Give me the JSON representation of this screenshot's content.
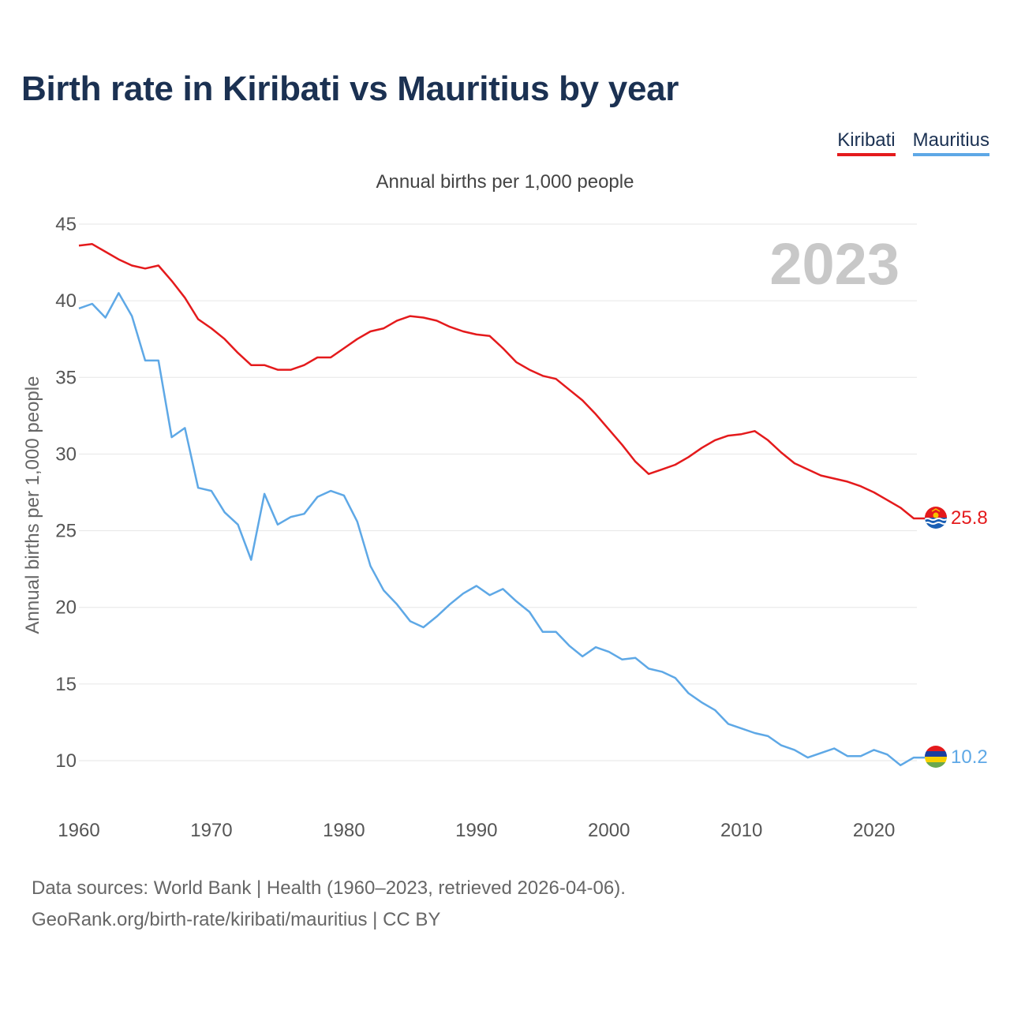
{
  "title": "Birth rate in Kiribati vs Mauritius by year",
  "legend": [
    "Kiribati",
    "Mauritius"
  ],
  "colors": {
    "kiribati": "#e41a1c",
    "mauritius": "#5ea8e6",
    "grid": "#e6e6e6",
    "tick": "#555555",
    "year": "#c8c8c8"
  },
  "year_overlay": "2023",
  "footer": {
    "line1": "Data sources: World Bank | Health (1960–2023, retrieved 2026-04-06).",
    "line2": "GeoRank.org/birth-rate/kiribati/mauritius | CC BY"
  },
  "chart_data": {
    "type": "line",
    "title": "Birth rate in Kiribati vs Mauritius by year",
    "subtitle": "Annual births per 1,000 people",
    "xlabel": "",
    "ylabel": "Annual births per 1,000 people",
    "xlim": [
      1960,
      2023
    ],
    "ylim": [
      7,
      45
    ],
    "x_ticks": [
      1960,
      1970,
      1980,
      1990,
      2000,
      2010,
      2020
    ],
    "y_ticks": [
      10,
      15,
      20,
      25,
      30,
      35,
      40,
      45
    ],
    "grid": true,
    "legend_position": "top-right",
    "x": [
      1960,
      1961,
      1962,
      1963,
      1964,
      1965,
      1966,
      1967,
      1968,
      1969,
      1970,
      1971,
      1972,
      1973,
      1974,
      1975,
      1976,
      1977,
      1978,
      1979,
      1980,
      1981,
      1982,
      1983,
      1984,
      1985,
      1986,
      1987,
      1988,
      1989,
      1990,
      1991,
      1992,
      1993,
      1994,
      1995,
      1996,
      1997,
      1998,
      1999,
      2000,
      2001,
      2002,
      2003,
      2004,
      2005,
      2006,
      2007,
      2008,
      2009,
      2010,
      2011,
      2012,
      2013,
      2014,
      2015,
      2016,
      2017,
      2018,
      2019,
      2020,
      2021,
      2022,
      2023
    ],
    "series": [
      {
        "name": "Kiribati",
        "end_label": "25.8",
        "values": [
          43.6,
          43.7,
          43.2,
          42.7,
          42.3,
          42.1,
          42.3,
          41.3,
          40.2,
          38.8,
          38.2,
          37.5,
          36.6,
          35.8,
          35.8,
          35.5,
          35.5,
          35.8,
          36.3,
          36.3,
          36.9,
          37.5,
          38.0,
          38.2,
          38.7,
          39.0,
          38.9,
          38.7,
          38.3,
          38.0,
          37.8,
          37.7,
          36.9,
          36.0,
          35.5,
          35.1,
          34.9,
          34.2,
          33.5,
          32.6,
          31.6,
          30.6,
          29.5,
          28.7,
          29.0,
          29.3,
          29.8,
          30.4,
          30.9,
          31.2,
          31.3,
          31.5,
          30.9,
          30.1,
          29.4,
          29.0,
          28.6,
          28.4,
          28.2,
          27.9,
          27.5,
          27.0,
          26.5,
          25.8
        ]
      },
      {
        "name": "Mauritius",
        "end_label": "10.2",
        "values": [
          39.5,
          39.8,
          38.9,
          40.5,
          39.0,
          36.1,
          36.1,
          31.1,
          31.7,
          27.8,
          27.6,
          26.2,
          25.4,
          23.1,
          27.4,
          25.4,
          25.9,
          26.1,
          27.2,
          27.6,
          27.3,
          25.6,
          22.7,
          21.1,
          20.2,
          19.1,
          18.7,
          19.4,
          20.2,
          20.9,
          21.4,
          20.8,
          21.2,
          20.4,
          19.7,
          18.4,
          18.4,
          17.5,
          16.8,
          17.4,
          17.1,
          16.6,
          16.7,
          16.0,
          15.8,
          15.4,
          14.4,
          13.8,
          13.3,
          12.4,
          12.1,
          11.8,
          11.6,
          11.0,
          10.7,
          10.2,
          10.5,
          10.8,
          10.3,
          10.3,
          10.7,
          10.4,
          9.7,
          10.2
        ]
      }
    ]
  }
}
